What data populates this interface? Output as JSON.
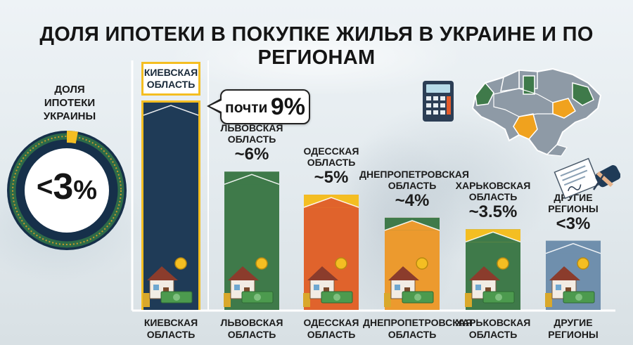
{
  "title": "ДОЛЯ ИПОТЕКИ В ПОКУПКЕ ЖИЛЬЯ В УКРАИНЕ И ПО РЕГИОНАМ",
  "ukraine": {
    "label_lines": [
      "ДОЛЯ",
      "ИПОТЕКИ",
      "УКРАИНЫ"
    ],
    "prefix": "<",
    "number": "3",
    "suffix": "%",
    "share_percent": 3
  },
  "kiev_tag_lines": [
    "КИЕВСКАЯ",
    "ОБЛАСТЬ"
  ],
  "callout": {
    "prefix": "почти",
    "value": "9%"
  },
  "icons": [
    "calculator-icon",
    "ukraine-map-icon",
    "contract-signing-icon",
    "house-with-money-icon",
    "coin-icon"
  ],
  "colors": {
    "navy": "#1f3b57",
    "green": "#3f7a4a",
    "orange": "#e0632c",
    "orange_light": "#ec9a2e",
    "gold": "#f4be22",
    "slate": "#6f8fad"
  },
  "chart_data": {
    "type": "bar",
    "categories": [
      [
        "КИЕВСКАЯ",
        "ОБЛАСТЬ"
      ],
      [
        "ЛЬВОВСКАЯ",
        "ОБЛАСТЬ"
      ],
      [
        "ОДЕССКАЯ",
        "ОБЛАСТЬ"
      ],
      [
        "ДНЕПРОПЕТРОВСКАЯ",
        "ОБЛАСТЬ"
      ],
      [
        "ХАРЬКОВСКАЯ",
        "ОБЛАСТЬ"
      ],
      [
        "ДРУГИЕ",
        "РЕГИОНЫ"
      ]
    ],
    "values": [
      9,
      6,
      5,
      4,
      3.5,
      3
    ],
    "value_labels": [
      "почти 9%",
      "~6%",
      "~5%",
      "~4%",
      "~3.5%",
      "<3%"
    ],
    "top_labels": [
      null,
      {
        "lines": [
          "ЛЬВОВСКАЯ",
          "ОБЛАСТЬ"
        ],
        "value": "~6%"
      },
      {
        "lines": [
          "ОДЕССКАЯ",
          "ОБЛАСТЬ"
        ],
        "value": "~5%"
      },
      {
        "lines": [
          "ДНЕПРОПЕТРОВСКАЯ",
          "ОБЛАСТЬ"
        ],
        "value": "~4%"
      },
      {
        "lines": [
          "ХАРЬКОВСКАЯ",
          "ОБЛАСТЬ"
        ],
        "value": "~3.5%"
      },
      {
        "lines": [
          "ДРУГИЕ",
          "РЕГИОНЫ"
        ],
        "value": "<3%"
      }
    ],
    "ylim": [
      0,
      9
    ],
    "xlabel": "",
    "ylabel": "",
    "grid": false,
    "legend": "none"
  }
}
